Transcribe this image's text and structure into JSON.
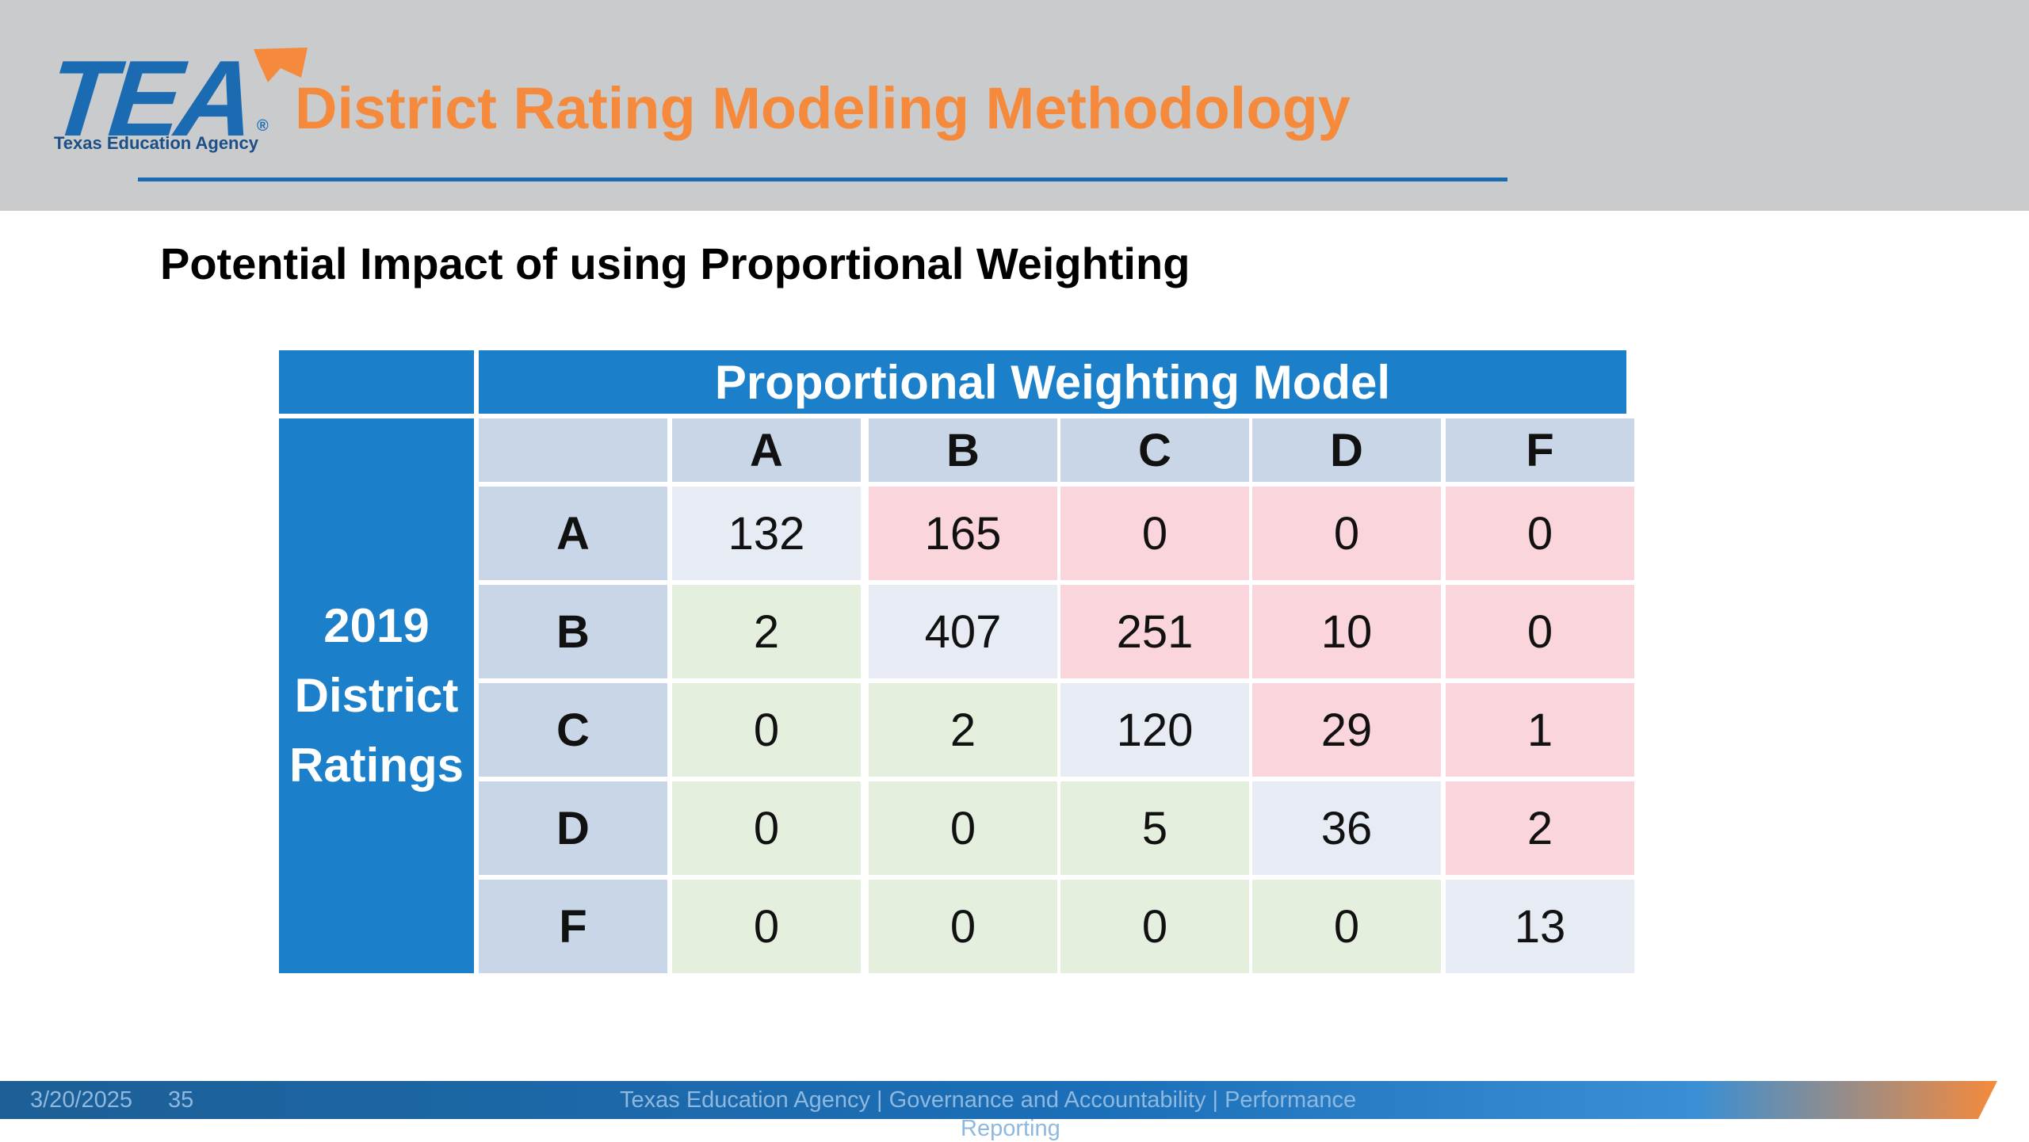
{
  "header": {
    "logo_text": "TEA",
    "logo_subtitle": "Texas Education Agency",
    "logo_reg": "®",
    "title": "District Rating Modeling Methodology",
    "colors": {
      "accent": "#f58a3c",
      "brand_blue": "#1b6bb3",
      "header_bg": "#cacbcd"
    }
  },
  "subtitle": "Potential Impact of using Proportional Weighting",
  "table": {
    "model_label": "Proportional Weighting Model",
    "side_label_lines": [
      "2019",
      "District",
      "Ratings"
    ],
    "columns": [
      "A",
      "B",
      "C",
      "D",
      "F"
    ],
    "rows": [
      {
        "label": "A",
        "values": [
          "132",
          "165",
          "0",
          "0",
          "0"
        ]
      },
      {
        "label": "B",
        "values": [
          "2",
          "407",
          "251",
          "10",
          "0"
        ]
      },
      {
        "label": "C",
        "values": [
          "0",
          "2",
          "120",
          "29",
          "1"
        ]
      },
      {
        "label": "D",
        "values": [
          "0",
          "0",
          "5",
          "36",
          "2"
        ]
      },
      {
        "label": "F",
        "values": [
          "0",
          "0",
          "0",
          "0",
          "13"
        ]
      }
    ],
    "colors": {
      "header_blue": "#1b7fc9",
      "same": "#e6ebf4",
      "higher": "#fbd5dc",
      "lower": "#e4efdd"
    }
  },
  "footer": {
    "date": "3/20/2025",
    "page": "35",
    "text_line1": "Texas Education Agency | Governance and Accountability | Performance",
    "text_line2": "Reporting"
  }
}
